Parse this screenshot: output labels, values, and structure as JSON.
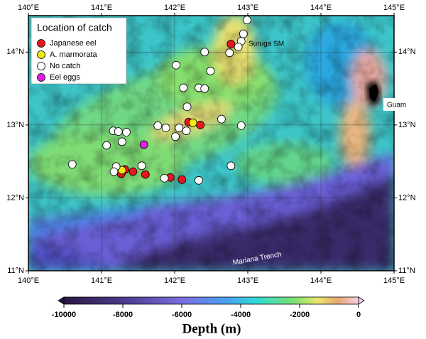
{
  "chart_data": {
    "type": "scatter",
    "xlim": [
      140,
      145
    ],
    "ylim": [
      11,
      14.5
    ],
    "xticks": [
      {
        "value": 140,
        "label": "140°E"
      },
      {
        "value": 141,
        "label": "141°E"
      },
      {
        "value": 142,
        "label": "142°E"
      },
      {
        "value": 143,
        "label": "143°E"
      },
      {
        "value": 144,
        "label": "144°E"
      },
      {
        "value": 145,
        "label": "145°E"
      }
    ],
    "yticks": [
      {
        "value": 11,
        "label": "11°N"
      },
      {
        "value": 12,
        "label": "12°N"
      },
      {
        "value": 13,
        "label": "13°N"
      },
      {
        "value": 14,
        "label": "14°N"
      }
    ],
    "grid": true,
    "legend": {
      "title": "Location of catch",
      "position": "upper left"
    },
    "series": [
      {
        "name": "Japanese eel",
        "color": "#e8161e",
        "x": [
          142.77,
          142.19,
          142.35,
          141.32,
          141.43,
          141.27,
          141.6,
          141.94,
          142.1
        ],
        "values": [
          14.11,
          13.04,
          13.0,
          12.39,
          12.36,
          12.33,
          12.32,
          12.28,
          12.25
        ]
      },
      {
        "name": "A. marmorata",
        "color": "#f2ea12",
        "x": [
          142.25,
          141.28
        ],
        "values": [
          13.03,
          12.38
        ]
      },
      {
        "name": "No catch",
        "color": "#ffffff",
        "x": [
          142.99,
          142.94,
          142.91,
          142.87,
          142.75,
          142.41,
          142.02,
          142.49,
          142.12,
          142.33,
          142.41,
          142.17,
          141.77,
          141.88,
          142.06,
          142.16,
          142.01,
          142.64,
          142.91,
          141.16,
          141.23,
          141.34,
          141.28,
          141.07,
          140.6,
          141.2,
          141.55,
          141.17,
          141.86,
          142.33,
          142.77
        ],
        "values": [
          14.44,
          14.25,
          14.15,
          14.07,
          13.99,
          14.0,
          13.82,
          13.74,
          13.51,
          13.51,
          13.5,
          13.25,
          12.99,
          12.96,
          12.96,
          12.92,
          12.84,
          13.08,
          12.99,
          12.92,
          12.91,
          12.9,
          12.77,
          12.72,
          12.46,
          12.43,
          12.44,
          12.36,
          12.27,
          12.24,
          12.44
        ]
      },
      {
        "name": "Eel eggs",
        "color": "#e020e0",
        "x": [
          141.58
        ],
        "values": [
          12.73
        ]
      }
    ],
    "annotations": [
      "Suruga SM",
      "Guam",
      "Mariana Trench"
    ],
    "colorbar": {
      "label": "Depth (m)",
      "lim": [
        -10000,
        0
      ],
      "ticks": [
        -10000,
        -8000,
        -6000,
        -4000,
        -2000,
        0
      ]
    }
  }
}
